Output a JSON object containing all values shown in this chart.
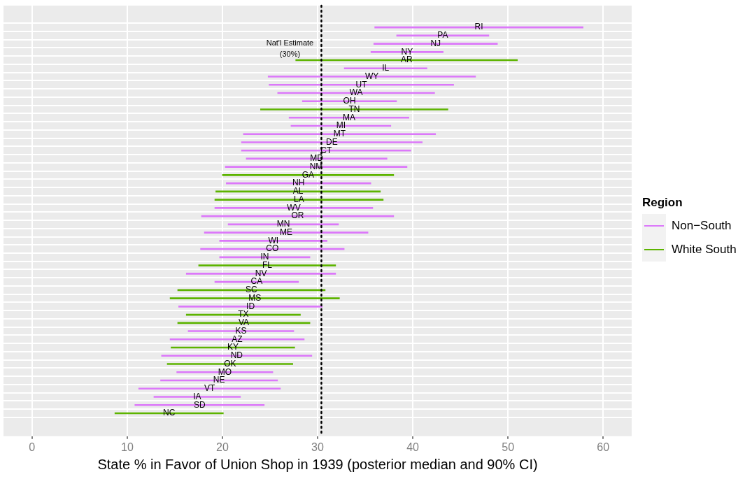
{
  "chart_data": {
    "type": "bar",
    "orientation": "horizontal",
    "xlabel": "State % in Favor of Union Shop in 1939 (posterior median and 90% CI)",
    "legend_title": "Region",
    "legend": "right",
    "grid": true,
    "tick_labels": "x",
    "xlim": [
      -3,
      63
    ],
    "xticks": [
      0,
      10,
      20,
      30,
      40,
      50,
      60
    ],
    "categories": [
      "RI",
      "PA",
      "NJ",
      "NY",
      "AR",
      "IL",
      "WY",
      "UT",
      "WA",
      "OH",
      "TN",
      "MA",
      "MI",
      "MT",
      "DE",
      "CT",
      "MD",
      "NM",
      "GA",
      "NH",
      "AL",
      "LA",
      "WV",
      "OR",
      "MN",
      "ME",
      "WI",
      "CO",
      "IN",
      "FL",
      "NV",
      "CA",
      "SC",
      "MS",
      "ID",
      "TX",
      "VA",
      "KS",
      "AZ",
      "KY",
      "ND",
      "OK",
      "MO",
      "NE",
      "VT",
      "IA",
      "SD",
      "NC"
    ],
    "series": [
      {
        "name": "Non−South",
        "color": "#dc78fa",
        "values": [
          21.9,
          9.7,
          13.0,
          7.6,
          null,
          8.7,
          21.8,
          19.4,
          16.5,
          9.9,
          null,
          12.6,
          10.5,
          20.2,
          19.0,
          17.8,
          14.8,
          19.1,
          null,
          15.2,
          null,
          null,
          16.6,
          20.2,
          11.6,
          17.2,
          11.3,
          15.1,
          9.5,
          null,
          15.7,
          8.8,
          null,
          null,
          15.1,
          null,
          null,
          11.1,
          14.1,
          null,
          15.8,
          null,
          10.1,
          12.3,
          14.9,
          9.1,
          13.6,
          null
        ],
        "base": [
          36.0,
          38.3,
          35.9,
          35.6,
          null,
          32.8,
          24.8,
          24.9,
          25.8,
          28.4,
          null,
          27.0,
          27.2,
          22.2,
          22.0,
          22.0,
          22.5,
          20.3,
          null,
          20.4,
          null,
          null,
          19.2,
          17.8,
          20.6,
          18.1,
          19.7,
          17.7,
          19.7,
          null,
          16.2,
          19.2,
          null,
          null,
          15.4,
          null,
          null,
          16.4,
          14.5,
          null,
          13.6,
          null,
          15.2,
          13.5,
          11.2,
          12.8,
          10.8,
          null
        ]
      },
      {
        "name": "White South",
        "color": "#5db400",
        "values": [
          null,
          null,
          null,
          null,
          23.3,
          null,
          null,
          null,
          null,
          null,
          19.7,
          null,
          null,
          null,
          null,
          null,
          null,
          null,
          18.0,
          null,
          17.3,
          17.7,
          null,
          null,
          null,
          null,
          null,
          null,
          null,
          14.4,
          null,
          null,
          15.5,
          17.8,
          null,
          12.0,
          13.9,
          null,
          null,
          13.0,
          null,
          13.2,
          null,
          null,
          null,
          null,
          null,
          11.4
        ],
        "base": [
          null,
          null,
          null,
          null,
          27.7,
          null,
          null,
          null,
          null,
          null,
          24.0,
          null,
          null,
          null,
          null,
          null,
          null,
          null,
          20.0,
          null,
          19.3,
          19.2,
          null,
          null,
          null,
          null,
          null,
          null,
          null,
          17.5,
          null,
          null,
          15.3,
          14.5,
          null,
          16.2,
          15.3,
          null,
          null,
          14.6,
          null,
          14.2,
          null,
          null,
          null,
          null,
          null,
          8.7
        ]
      }
    ],
    "ref_lines": [
      {
        "axis": "x",
        "value": 30.4,
        "label": "Nat'l Estimate (30%)",
        "line_style": "dotted",
        "color": "#000000"
      }
    ]
  }
}
